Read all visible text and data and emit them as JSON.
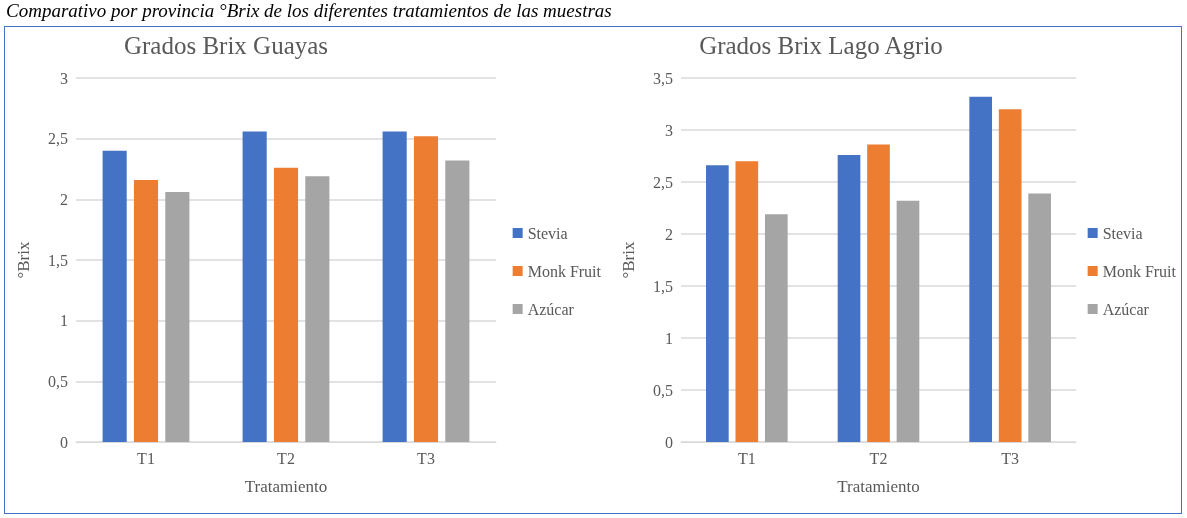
{
  "chart_data": [
    {
      "type": "bar",
      "title": "Grados Brix Guayas",
      "xlabel": "Tratamiento",
      "ylabel": "°Brix",
      "annotations": [
        "Comparativo por provincia °Brix de los diferentes tratamientos de las muestras"
      ],
      "categories": [
        "T1",
        "T2",
        "T3"
      ],
      "series": [
        {
          "name": "Stevia",
          "color": "#4472c4",
          "values": [
            2.4,
            2.56,
            2.56
          ]
        },
        {
          "name": "Monk Fruit",
          "color": "#ed7d31",
          "values": [
            2.16,
            2.26,
            2.52
          ]
        },
        {
          "name": "Azúcar",
          "color": "#a5a5a5",
          "values": [
            2.06,
            2.19,
            2.32
          ]
        }
      ],
      "ylim": [
        0,
        3
      ],
      "yticks": [
        0,
        {
          "value": 0.5,
          "label": "0,5"
        },
        1,
        {
          "value": 1.5,
          "label": "1,5"
        },
        2,
        {
          "value": 2.5,
          "label": "2,5"
        },
        3
      ],
      "grid": "y",
      "legend": "right"
    },
    {
      "type": "bar",
      "title": "Grados Brix Lago Agrio",
      "xlabel": "Tratamiento",
      "ylabel": "°Brix",
      "categories": [
        "T1",
        "T2",
        "T3"
      ],
      "series": [
        {
          "name": "Stevia",
          "color": "#4472c4",
          "values": [
            2.66,
            2.76,
            3.32
          ]
        },
        {
          "name": "Monk Fruit",
          "color": "#ed7d31",
          "values": [
            2.7,
            2.86,
            3.2
          ]
        },
        {
          "name": "Azúcar",
          "color": "#a5a5a5",
          "values": [
            2.19,
            2.32,
            2.39
          ]
        }
      ],
      "ylim": [
        0,
        3.5
      ],
      "yticks": [
        0,
        {
          "value": 0.5,
          "label": "0,5"
        },
        1,
        {
          "value": 1.5,
          "label": "1,5"
        },
        2,
        {
          "value": 2.5,
          "label": "2,5"
        },
        3,
        {
          "value": 3.5,
          "label": "3,5"
        }
      ],
      "grid": "y",
      "legend": "right"
    }
  ]
}
